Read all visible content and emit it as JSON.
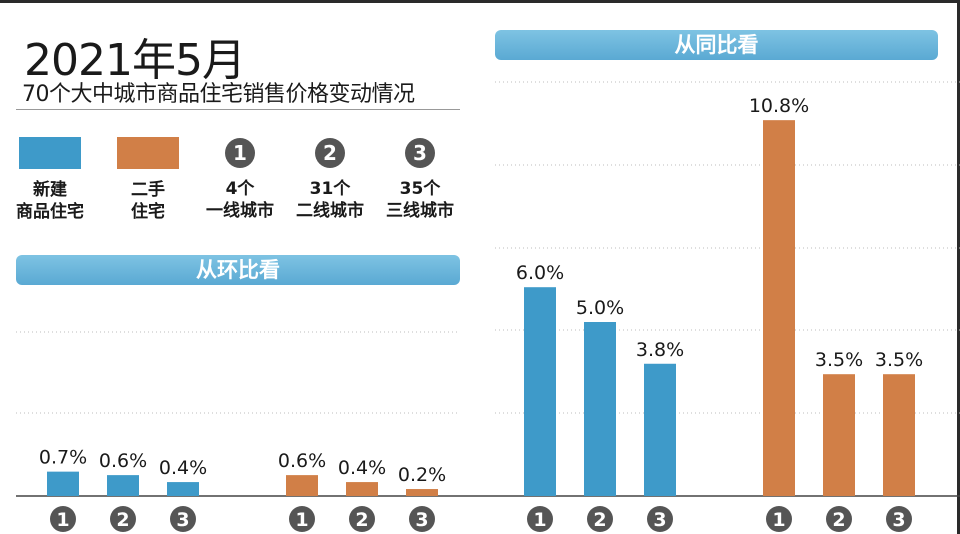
{
  "title": "2021年5月",
  "subtitle": "70个大中城市商品住宅销售价格变动情况",
  "legend": [
    {
      "kind": "swatch",
      "color": "#3e9ac9",
      "line1": "新建",
      "line2": "商品住宅"
    },
    {
      "kind": "swatch",
      "color": "#d17f47",
      "line1": "二手",
      "line2": "住宅"
    },
    {
      "kind": "circle",
      "symbol": "1",
      "line1": "4个",
      "line2": "一线城市"
    },
    {
      "kind": "circle",
      "symbol": "2",
      "line1": "31个",
      "line2": "二线城市"
    },
    {
      "kind": "circle",
      "symbol": "3",
      "line1": "35个",
      "line2": "三线城市"
    }
  ],
  "colors": {
    "new": "#3e9ac9",
    "second": "#d17f47",
    "circle": "#555555"
  },
  "chart_data": [
    {
      "type": "bar",
      "title": "从环比看",
      "categories": [
        "1",
        "2",
        "3"
      ],
      "series": [
        {
          "name": "新建商品住宅",
          "values": [
            0.7,
            0.6,
            0.4
          ],
          "labels": [
            "0.7%",
            "0.6%",
            "0.4%"
          ]
        },
        {
          "name": "二手住宅",
          "values": [
            0.6,
            0.4,
            0.2
          ],
          "labels": [
            "0.6%",
            "0.4%",
            "0.2%"
          ]
        }
      ]
    },
    {
      "type": "bar",
      "title": "从同比看",
      "categories": [
        "1",
        "2",
        "3"
      ],
      "series": [
        {
          "name": "新建商品住宅",
          "values": [
            6.0,
            5.0,
            3.8
          ],
          "labels": [
            "6.0%",
            "5.0%",
            "3.8%"
          ]
        },
        {
          "name": "二手住宅",
          "values": [
            10.8,
            3.5,
            3.5
          ],
          "labels": [
            "10.8%",
            "3.5%",
            "3.5%"
          ]
        }
      ]
    }
  ]
}
